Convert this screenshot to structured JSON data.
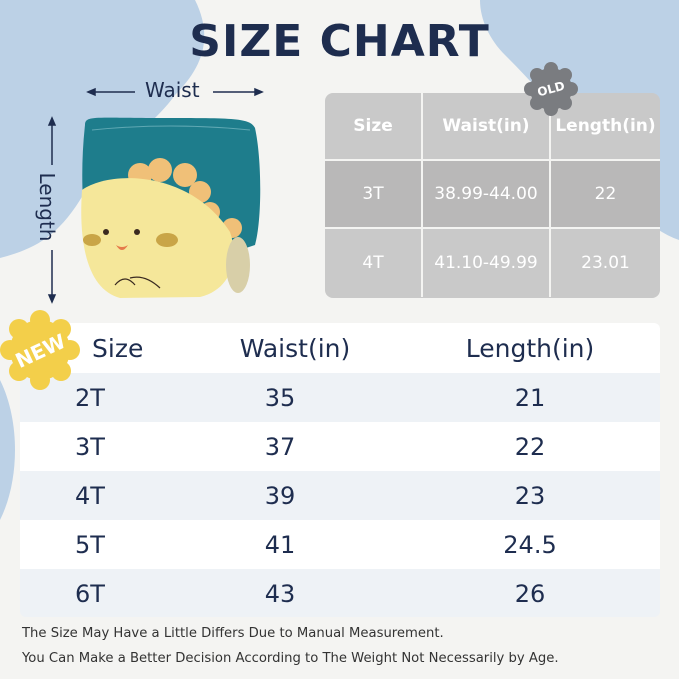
{
  "title": "SIZE CHART",
  "diagram": {
    "waist_label": "Waist",
    "length_label": "Length"
  },
  "old_table": {
    "badge": "OLD",
    "headers": [
      "Size",
      "Waist(in)",
      "Length(in)"
    ],
    "rows": [
      [
        "3T",
        "38.99-44.00",
        "22"
      ],
      [
        "4T",
        "41.10-49.99",
        "23.01"
      ]
    ]
  },
  "new_table": {
    "badge": "NEW",
    "headers": [
      "Size",
      "Waist(in)",
      "Length(in)"
    ],
    "rows": [
      [
        "2T",
        "35",
        "21"
      ],
      [
        "3T",
        "37",
        "22"
      ],
      [
        "4T",
        "39",
        "23"
      ],
      [
        "5T",
        "41",
        "24.5"
      ],
      [
        "6T",
        "43",
        "26"
      ]
    ]
  },
  "notes": [
    "The Size May Have a Little Differs Due to Manual Measurement.",
    "You Can Make a Better Decision According to The Weight Not Necessarily by Age."
  ],
  "colors": {
    "navy": "#1e2d4f",
    "blob": "#bcd1e6",
    "teal": "#1e7d8c",
    "yellow": "#f5e79a",
    "badge_new": "#f3cf4a",
    "badge_old": "#7a7c80"
  }
}
